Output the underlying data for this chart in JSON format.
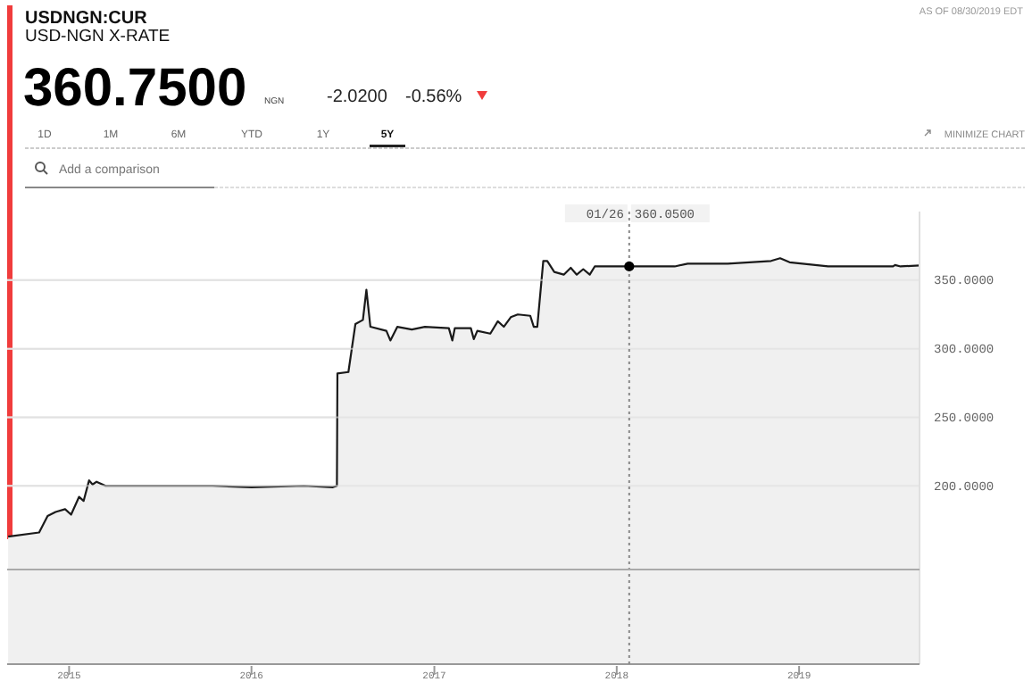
{
  "chart_data": {
    "type": "area",
    "title": "USDNGN:CUR",
    "subtitle": "USD-NGN X-RATE",
    "annotations": [
      "360.7500",
      "NGN",
      "-2.0200",
      "-0.56%",
      "AS OF 08/30/2019 EDT",
      "1D",
      "1M",
      "6M",
      "YTD",
      "1Y",
      "5Y",
      "MINIMIZE CHART",
      "Add a comparison",
      "360.0500"
    ],
    "x": [
      "2014-09-01",
      "2014-11-02",
      "2014-11-19",
      "2014-12-05",
      "2014-12-24",
      "2015-01-05",
      "2015-01-21",
      "2015-01-30",
      "2015-02-10",
      "2015-02-17",
      "2015-02-25",
      "2015-03-15",
      "2015-07-01",
      "2015-10-15",
      "2016-01-01",
      "2016-04-15",
      "2016-06-12",
      "2016-06-20",
      "2016-06-21",
      "2016-07-13",
      "2016-07-27",
      "2016-08-11",
      "2016-08-18",
      "2016-08-26",
      "2016-09-27",
      "2016-10-05",
      "2016-10-19",
      "2016-11-17",
      "2016-12-13",
      "2017-01-30",
      "2017-02-06",
      "2017-02-11",
      "2017-03-15",
      "2017-03-21",
      "2017-03-28",
      "2017-04-23",
      "2017-05-08",
      "2017-05-20",
      "2017-06-03",
      "2017-06-17",
      "2017-07-12",
      "2017-07-19",
      "2017-07-26",
      "2017-08-07",
      "2017-08-15",
      "2017-08-29",
      "2017-09-17",
      "2017-10-01",
      "2017-10-13",
      "2017-10-26",
      "2017-11-08",
      "2017-11-18",
      "2018-01-26",
      "2018-04-27",
      "2018-05-23",
      "2018-08-11",
      "2018-11-06",
      "2018-11-24",
      "2018-12-13",
      "2019-02-28",
      "2019-07-08",
      "2019-07-12",
      "2019-07-23",
      "2019-08-30"
    ],
    "series": [
      {
        "color": "#1a1a1a",
        "values": [
          163,
          166,
          178,
          181,
          183,
          179,
          192,
          189,
          204,
          201,
          203,
          200,
          200,
          200,
          199,
          200,
          199,
          200,
          282,
          283,
          318,
          321,
          343,
          316,
          313,
          306,
          316,
          314,
          316,
          315,
          306,
          315,
          315,
          307,
          313,
          311,
          320,
          316,
          323,
          325,
          324,
          316,
          316,
          364,
          364,
          356,
          354,
          359,
          354,
          358,
          354,
          360,
          360.05,
          360,
          362,
          362,
          364,
          366,
          363,
          360,
          360,
          361,
          360,
          360.75
        ]
      }
    ],
    "xlim": [
      "2014-08-30",
      "2019-08-30"
    ],
    "xticks": [
      {
        "value": "2015-01-01",
        "label": "2015"
      },
      {
        "value": "2016-01-01",
        "label": "2016"
      },
      {
        "value": "2017-01-01",
        "label": "2017"
      },
      {
        "value": "2018-01-01",
        "label": "2018"
      },
      {
        "value": "2019-01-01",
        "label": "2019"
      }
    ],
    "ylim": [
      70,
      400
    ],
    "yticks": [
      {
        "value": 200,
        "label": "200.0000"
      },
      {
        "value": 250,
        "label": "250.0000"
      },
      {
        "value": 300,
        "label": "300.0000"
      },
      {
        "value": 350,
        "label": "350.0000"
      }
    ],
    "ref_lines": [
      {
        "axis": "x",
        "value": "2018-01-26",
        "label": "01/26",
        "line_style": "dotted",
        "color": "#888888"
      },
      {
        "axis": "y",
        "value": 139,
        "color": "#aaaaaa",
        "line_style": "solid"
      }
    ],
    "grid": "y",
    "marker": "none",
    "line_style": "solid"
  }
}
